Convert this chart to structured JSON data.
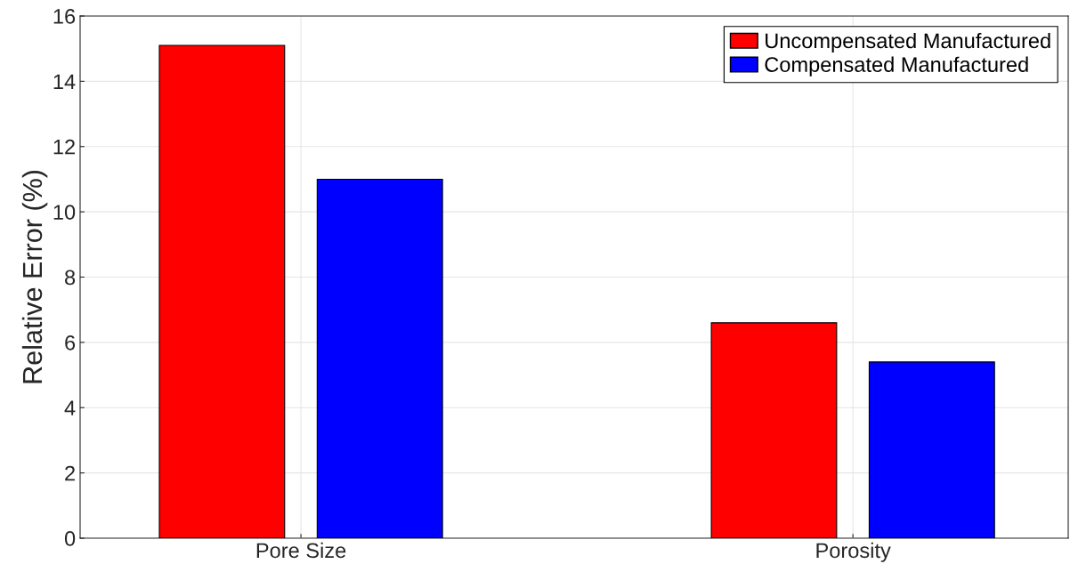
{
  "chart_data": {
    "type": "bar",
    "ylabel": "Relative Error (%)",
    "categories": [
      "Pore Size",
      "Porosity"
    ],
    "series": [
      {
        "name": "Uncompensated Manufactured",
        "color": "#ff0000",
        "values": [
          15.1,
          6.6
        ]
      },
      {
        "name": "Compensated Manufactured",
        "color": "#0000ff",
        "values": [
          11.0,
          5.4
        ]
      }
    ],
    "ylim": [
      0,
      16
    ],
    "yticks": [
      0,
      2,
      4,
      6,
      8,
      10,
      12,
      14,
      16
    ],
    "grid": true,
    "legend": "top right"
  }
}
